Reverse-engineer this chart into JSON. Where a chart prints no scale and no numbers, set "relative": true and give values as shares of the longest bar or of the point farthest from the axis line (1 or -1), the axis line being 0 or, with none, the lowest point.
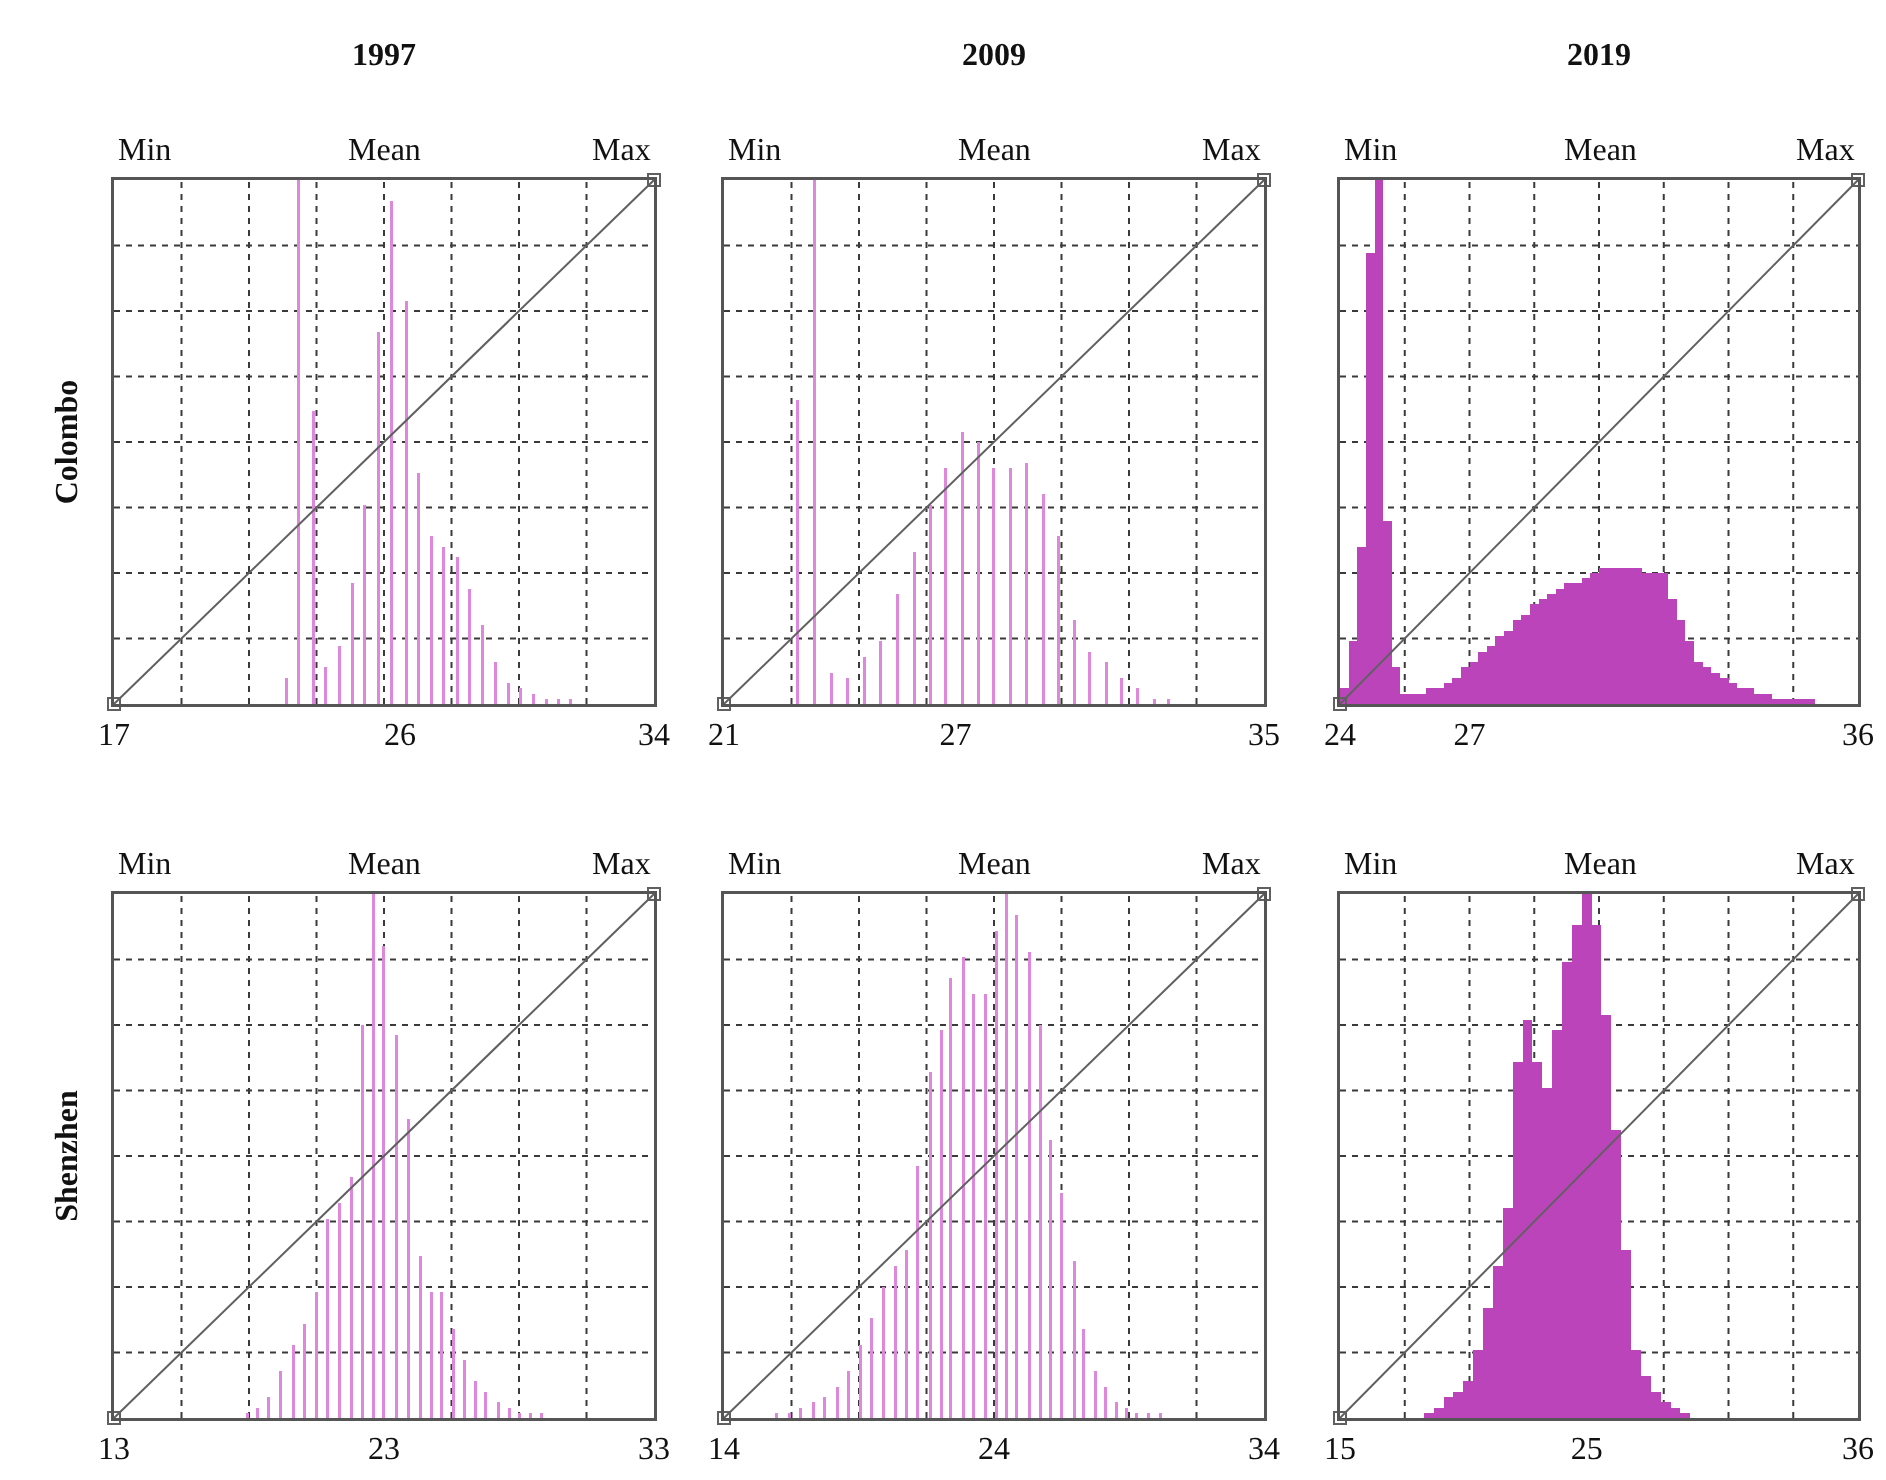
{
  "chart_data": [
    {
      "type": "bar",
      "title": "1997",
      "ylabel": "Colombo",
      "relative": true,
      "grid": true,
      "annotations": [
        "Min",
        "Mean",
        "Max"
      ],
      "xlim": [
        17,
        34
      ],
      "xticks": [
        17,
        {
          "value": 19.125,
          "label": null
        },
        {
          "value": 21.25,
          "label": null
        },
        {
          "value": 23.375,
          "label": null
        },
        {
          "value": 25.5,
          "label": null
        },
        26,
        {
          "value": 27.625,
          "label": null
        },
        {
          "value": 29.75,
          "label": null
        },
        {
          "value": 31.875,
          "label": null
        },
        34
      ],
      "series": [
        {
          "color": "#dd88dd",
          "x": [
            22.44,
            22.82,
            23.29,
            23.67,
            24.1,
            24.5,
            24.88,
            25.33,
            25.74,
            26.2,
            26.58,
            26.99,
            27.37,
            27.8,
            28.2,
            28.6,
            29.0,
            29.41,
            29.81,
            30.2,
            30.6,
            30.98,
            31.37
          ],
          "values": [
            0.05,
            1.0,
            0.56,
            0.07,
            0.11,
            0.23,
            0.38,
            0.71,
            0.96,
            0.77,
            0.44,
            0.32,
            0.3,
            0.28,
            0.22,
            0.15,
            0.08,
            0.04,
            0.03,
            0.02,
            0.01,
            0.01,
            0.01
          ]
        },
        {
          "type": "line",
          "color": "#606060",
          "marker": "square",
          "x": [
            17,
            34
          ],
          "values": [
            0,
            1
          ]
        }
      ]
    },
    {
      "type": "bar",
      "title": "2009",
      "relative": true,
      "grid": true,
      "annotations": [
        "Min",
        "Mean",
        "Max"
      ],
      "xlim": [
        21,
        35
      ],
      "xticks": [
        21,
        {
          "value": 22.75,
          "label": null
        },
        {
          "value": 24.5,
          "label": null
        },
        {
          "value": 26.25,
          "label": null
        },
        27,
        {
          "value": 28,
          "label": null
        },
        {
          "value": 29.75,
          "label": null
        },
        {
          "value": 31.5,
          "label": null
        },
        {
          "value": 33.25,
          "label": null
        },
        35
      ],
      "series": [
        {
          "color": "#dd88dd",
          "x": [
            22.91,
            23.34,
            23.78,
            24.21,
            24.63,
            25.06,
            25.5,
            25.93,
            26.35,
            26.74,
            27.18,
            27.59,
            27.98,
            28.43,
            28.85,
            29.29,
            29.68,
            30.09,
            30.48,
            30.91,
            31.31,
            31.72,
            32.15,
            32.52
          ],
          "values": [
            0.58,
            1.0,
            0.06,
            0.05,
            0.09,
            0.12,
            0.21,
            0.29,
            0.38,
            0.45,
            0.52,
            0.5,
            0.45,
            0.45,
            0.46,
            0.4,
            0.32,
            0.16,
            0.1,
            0.08,
            0.05,
            0.03,
            0.01,
            0.01
          ]
        },
        {
          "type": "line",
          "color": "#606060",
          "marker": "square",
          "x": [
            21,
            35
          ],
          "values": [
            0,
            1
          ]
        }
      ]
    },
    {
      "type": "histogram",
      "title": "2019",
      "relative": true,
      "grid": true,
      "annotations": [
        "Min",
        "Mean",
        "Max"
      ],
      "xlim": [
        24,
        36
      ],
      "xticks": [
        24,
        {
          "value": 25.5,
          "label": null
        },
        27,
        {
          "value": 27,
          "label": null
        },
        {
          "value": 28.5,
          "label": null
        },
        {
          "value": 30,
          "label": null
        },
        {
          "value": 31.5,
          "label": null
        },
        {
          "value": 33,
          "label": null
        },
        {
          "value": 34.5,
          "label": null
        },
        36
      ],
      "series": [
        {
          "color": "#bb44bb",
          "bins": [
            24.0,
            24.2,
            24.4,
            24.6,
            24.8,
            25.0,
            25.2,
            25.4,
            25.6,
            25.8,
            26.0,
            26.2,
            26.4,
            26.6,
            26.8,
            27.0,
            27.2,
            27.4,
            27.6,
            27.8,
            28.0,
            28.2,
            28.4,
            28.6,
            28.8,
            29.0,
            29.2,
            29.4,
            29.6,
            29.8,
            30.0,
            30.2,
            30.4,
            30.6,
            30.8,
            31.0,
            31.2,
            31.4,
            31.6,
            31.8,
            32.0,
            32.2,
            32.4,
            32.6,
            32.8,
            33.0,
            33.2,
            33.4,
            33.6,
            33.8,
            34.0,
            34.2,
            34.4,
            34.6,
            34.8,
            35.0
          ],
          "values": [
            0.03,
            0.12,
            0.3,
            0.86,
            1.0,
            0.35,
            0.07,
            0.02,
            0.02,
            0.02,
            0.03,
            0.03,
            0.04,
            0.05,
            0.07,
            0.08,
            0.1,
            0.11,
            0.13,
            0.14,
            0.16,
            0.17,
            0.19,
            0.2,
            0.21,
            0.22,
            0.23,
            0.23,
            0.24,
            0.25,
            0.26,
            0.26,
            0.26,
            0.26,
            0.26,
            0.25,
            0.25,
            0.25,
            0.2,
            0.16,
            0.12,
            0.08,
            0.07,
            0.06,
            0.05,
            0.04,
            0.03,
            0.03,
            0.02,
            0.02,
            0.01,
            0.01,
            0.01,
            0.01,
            0.01
          ]
        },
        {
          "type": "line",
          "color": "#606060",
          "marker": "square",
          "x": [
            24,
            36
          ],
          "values": [
            0,
            1
          ]
        }
      ]
    },
    {
      "type": "bar",
      "ylabel": "Shenzhen",
      "relative": true,
      "grid": true,
      "annotations": [
        "Min",
        "Mean",
        "Max"
      ],
      "xlim": [
        13,
        33
      ],
      "xticks": [
        13,
        {
          "value": 15.5,
          "label": null
        },
        {
          "value": 18,
          "label": null
        },
        {
          "value": 20.5,
          "label": null
        },
        23,
        {
          "value": 23,
          "label": null
        },
        {
          "value": 25.5,
          "label": null
        },
        {
          "value": 28,
          "label": null
        },
        {
          "value": 30.5,
          "label": null
        },
        33
      ],
      "series": [
        {
          "color": "#dd88dd",
          "x": [
            17.96,
            18.32,
            18.72,
            19.18,
            19.66,
            20.04,
            20.49,
            20.9,
            21.35,
            21.78,
            22.19,
            22.62,
            22.97,
            23.48,
            23.91,
            24.34,
            24.75,
            25.13,
            25.58,
            25.99,
            26.39,
            26.77,
            27.23,
            27.63,
            28.01,
            28.44,
            28.85
          ],
          "values": [
            0.01,
            0.02,
            0.04,
            0.09,
            0.14,
            0.18,
            0.24,
            0.38,
            0.41,
            0.46,
            0.75,
            1.0,
            0.9,
            0.73,
            0.57,
            0.31,
            0.24,
            0.24,
            0.17,
            0.11,
            0.07,
            0.05,
            0.03,
            0.02,
            0.01,
            0.01,
            0.01
          ]
        },
        {
          "type": "line",
          "color": "#606060",
          "marker": "square",
          "x": [
            13,
            33
          ],
          "values": [
            0,
            1
          ]
        }
      ]
    },
    {
      "type": "bar",
      "relative": true,
      "grid": true,
      "annotations": [
        "Min",
        "Mean",
        "Max"
      ],
      "xlim": [
        14,
        34
      ],
      "xticks": [
        14,
        {
          "value": 16.5,
          "label": null
        },
        {
          "value": 19,
          "label": null
        },
        {
          "value": 21.5,
          "label": null
        },
        24,
        {
          "value": 24,
          "label": null
        },
        {
          "value": 26.5,
          "label": null
        },
        {
          "value": 29,
          "label": null
        },
        {
          "value": 31.5,
          "label": null
        },
        34
      ],
      "series": [
        {
          "color": "#dd88dd",
          "x": [
            15.95,
            16.41,
            16.84,
            17.3,
            17.73,
            18.19,
            18.62,
            19.05,
            19.46,
            19.91,
            20.34,
            20.75,
            21.18,
            21.64,
            22.04,
            22.38,
            22.86,
            23.24,
            23.7,
            24.11,
            24.46,
            24.84,
            25.32,
            25.73,
            26.11,
            26.49,
            26.97,
            27.32,
            27.76,
            28.14,
            28.52,
            28.9,
            29.28,
            29.74,
            30.17
          ],
          "values": [
            0.01,
            0.01,
            0.02,
            0.03,
            0.04,
            0.06,
            0.09,
            0.14,
            0.19,
            0.25,
            0.29,
            0.32,
            0.48,
            0.66,
            0.74,
            0.84,
            0.88,
            0.81,
            0.81,
            0.93,
            1.0,
            0.96,
            0.89,
            0.75,
            0.53,
            0.43,
            0.3,
            0.17,
            0.09,
            0.06,
            0.03,
            0.02,
            0.01,
            0.01,
            0.01
          ]
        },
        {
          "type": "line",
          "color": "#606060",
          "marker": "square",
          "x": [
            14,
            34
          ],
          "values": [
            0,
            1
          ]
        }
      ]
    },
    {
      "type": "histogram",
      "relative": true,
      "grid": true,
      "annotations": [
        "Min",
        "Mean",
        "Max"
      ],
      "xlim": [
        15,
        36
      ],
      "xticks": [
        15,
        {
          "value": 17.625,
          "label": null
        },
        {
          "value": 20.25,
          "label": null
        },
        {
          "value": 22.875,
          "label": null
        },
        25,
        {
          "value": 25.5,
          "label": null
        },
        {
          "value": 28.125,
          "label": null
        },
        {
          "value": 30.75,
          "label": null
        },
        {
          "value": 33.375,
          "label": null
        },
        36
      ],
      "series": [
        {
          "color": "#bb44bb",
          "bins": [
            18.4,
            18.8,
            19.2,
            19.6,
            20.0,
            20.4,
            20.8,
            21.2,
            21.6,
            22.0,
            22.4,
            22.8,
            23.2,
            23.6,
            24.0,
            24.4,
            24.8,
            25.2,
            25.6,
            26.0,
            26.4,
            26.8,
            27.2,
            27.6,
            28.0,
            28.4,
            28.8,
            29.2
          ],
          "values": [
            0.01,
            0.02,
            0.04,
            0.05,
            0.07,
            0.13,
            0.21,
            0.29,
            0.4,
            0.68,
            0.76,
            0.68,
            0.63,
            0.74,
            0.87,
            0.94,
            1.0,
            0.94,
            0.77,
            0.55,
            0.32,
            0.13,
            0.08,
            0.05,
            0.03,
            0.02,
            0.01
          ]
        },
        {
          "type": "line",
          "color": "#606060",
          "marker": "square",
          "x": [
            15,
            36
          ],
          "values": [
            0,
            1
          ]
        }
      ]
    }
  ]
}
